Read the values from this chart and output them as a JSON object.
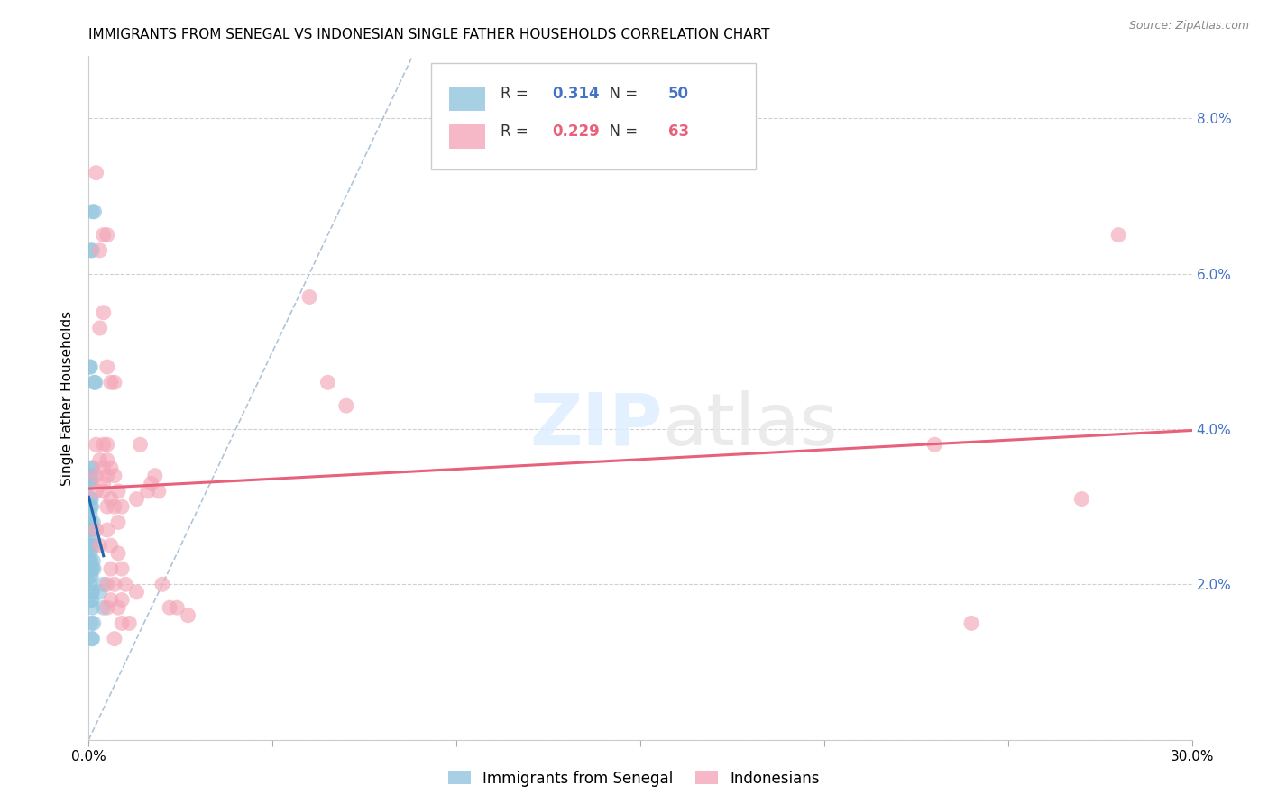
{
  "title": "IMMIGRANTS FROM SENEGAL VS INDONESIAN SINGLE FATHER HOUSEHOLDS CORRELATION CHART",
  "source": "Source: ZipAtlas.com",
  "ylabel": "Single Father Households",
  "xlim": [
    0.0,
    0.3
  ],
  "ylim": [
    0.0,
    0.088
  ],
  "xtick_positions": [
    0.0,
    0.05,
    0.1,
    0.15,
    0.2,
    0.25,
    0.3
  ],
  "xticklabels": [
    "0.0%",
    "",
    "",
    "",
    "",
    "",
    "30.0%"
  ],
  "ytick_positions": [
    0.0,
    0.02,
    0.04,
    0.06,
    0.08
  ],
  "yticklabels_right": [
    "",
    "2.0%",
    "4.0%",
    "6.0%",
    "8.0%"
  ],
  "legend1_label": "Immigrants from Senegal",
  "legend2_label": "Indonesians",
  "R1": "0.314",
  "N1": "50",
  "R2": "0.229",
  "N2": "63",
  "blue_color": "#92c5de",
  "pink_color": "#f4a6b8",
  "blue_line_color": "#2166ac",
  "pink_line_color": "#e8607a",
  "blue_scatter": [
    [
      0.0005,
      0.063
    ],
    [
      0.001,
      0.063
    ],
    [
      0.0005,
      0.048
    ],
    [
      0.001,
      0.068
    ],
    [
      0.0015,
      0.068
    ],
    [
      0.0002,
      0.048
    ],
    [
      0.0008,
      0.035
    ],
    [
      0.001,
      0.035
    ],
    [
      0.0005,
      0.034
    ],
    [
      0.0008,
      0.034
    ],
    [
      0.0003,
      0.033
    ],
    [
      0.0006,
      0.033
    ],
    [
      0.0004,
      0.033
    ],
    [
      0.0007,
      0.031
    ],
    [
      0.0004,
      0.031
    ],
    [
      0.0005,
      0.03
    ],
    [
      0.0008,
      0.03
    ],
    [
      0.0004,
      0.029
    ],
    [
      0.0006,
      0.028
    ],
    [
      0.0005,
      0.027
    ],
    [
      0.0009,
      0.027
    ],
    [
      0.0004,
      0.026
    ],
    [
      0.0003,
      0.025
    ],
    [
      0.0007,
      0.025
    ],
    [
      0.0004,
      0.024
    ],
    [
      0.0006,
      0.023
    ],
    [
      0.0003,
      0.023
    ],
    [
      0.0007,
      0.022
    ],
    [
      0.001,
      0.022
    ],
    [
      0.0003,
      0.021
    ],
    [
      0.0007,
      0.021
    ],
    [
      0.0004,
      0.02
    ],
    [
      0.0008,
      0.019
    ],
    [
      0.001,
      0.019
    ],
    [
      0.0006,
      0.018
    ],
    [
      0.0009,
      0.018
    ],
    [
      0.001,
      0.017
    ],
    [
      0.0007,
      0.015
    ],
    [
      0.0013,
      0.015
    ],
    [
      0.0008,
      0.013
    ],
    [
      0.001,
      0.013
    ],
    [
      0.0015,
      0.046
    ],
    [
      0.0018,
      0.046
    ],
    [
      0.0012,
      0.028
    ],
    [
      0.0014,
      0.025
    ],
    [
      0.0012,
      0.023
    ],
    [
      0.0014,
      0.022
    ],
    [
      0.004,
      0.02
    ],
    [
      0.003,
      0.019
    ],
    [
      0.004,
      0.017
    ]
  ],
  "pink_scatter": [
    [
      0.002,
      0.073
    ],
    [
      0.004,
      0.065
    ],
    [
      0.005,
      0.065
    ],
    [
      0.003,
      0.063
    ],
    [
      0.004,
      0.055
    ],
    [
      0.003,
      0.053
    ],
    [
      0.005,
      0.048
    ],
    [
      0.006,
      0.046
    ],
    [
      0.007,
      0.046
    ],
    [
      0.002,
      0.038
    ],
    [
      0.004,
      0.038
    ],
    [
      0.005,
      0.038
    ],
    [
      0.003,
      0.036
    ],
    [
      0.005,
      0.036
    ],
    [
      0.004,
      0.035
    ],
    [
      0.006,
      0.035
    ],
    [
      0.002,
      0.034
    ],
    [
      0.005,
      0.034
    ],
    [
      0.007,
      0.034
    ],
    [
      0.004,
      0.033
    ],
    [
      0.002,
      0.032
    ],
    [
      0.004,
      0.032
    ],
    [
      0.008,
      0.032
    ],
    [
      0.006,
      0.031
    ],
    [
      0.005,
      0.03
    ],
    [
      0.007,
      0.03
    ],
    [
      0.009,
      0.03
    ],
    [
      0.008,
      0.028
    ],
    [
      0.002,
      0.027
    ],
    [
      0.005,
      0.027
    ],
    [
      0.003,
      0.025
    ],
    [
      0.006,
      0.025
    ],
    [
      0.008,
      0.024
    ],
    [
      0.006,
      0.022
    ],
    [
      0.009,
      0.022
    ],
    [
      0.005,
      0.02
    ],
    [
      0.007,
      0.02
    ],
    [
      0.01,
      0.02
    ],
    [
      0.006,
      0.018
    ],
    [
      0.009,
      0.018
    ],
    [
      0.005,
      0.017
    ],
    [
      0.008,
      0.017
    ],
    [
      0.009,
      0.015
    ],
    [
      0.011,
      0.015
    ],
    [
      0.007,
      0.013
    ],
    [
      0.013,
      0.019
    ],
    [
      0.014,
      0.038
    ],
    [
      0.013,
      0.031
    ],
    [
      0.016,
      0.032
    ],
    [
      0.017,
      0.033
    ],
    [
      0.018,
      0.034
    ],
    [
      0.019,
      0.032
    ],
    [
      0.02,
      0.02
    ],
    [
      0.022,
      0.017
    ],
    [
      0.024,
      0.017
    ],
    [
      0.027,
      0.016
    ],
    [
      0.06,
      0.057
    ],
    [
      0.07,
      0.043
    ],
    [
      0.065,
      0.046
    ],
    [
      0.28,
      0.065
    ],
    [
      0.27,
      0.031
    ],
    [
      0.24,
      0.015
    ],
    [
      0.23,
      0.038
    ]
  ],
  "background_color": "#ffffff",
  "grid_color": "#d0d0d0",
  "title_fontsize": 11,
  "axis_label_fontsize": 11,
  "tick_fontsize": 11,
  "right_tick_color": "#4472c4"
}
